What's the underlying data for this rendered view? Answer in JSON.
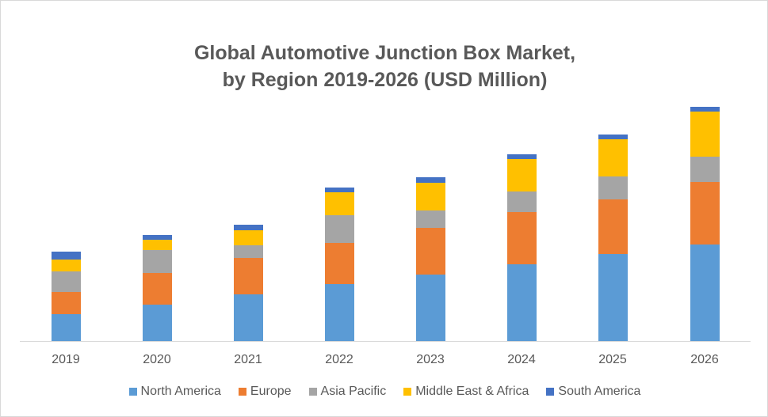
{
  "chart_data": {
    "type": "bar",
    "stacked": true,
    "title": "Global Automotive Junction Box Market, by Region 2019-2026 (USD Million)",
    "title_lines": [
      "Global Automotive Junction Box Market,",
      "by Region 2019-2026 (USD Million)"
    ],
    "xlabel": "",
    "ylabel": "",
    "y_axis_visible": false,
    "grid": false,
    "legend_position": "bottom",
    "categories": [
      "2019",
      "2020",
      "2021",
      "2022",
      "2023",
      "2024",
      "2025",
      "2026"
    ],
    "series": [
      {
        "name": "North America",
        "color": "#5B9BD5",
        "values": [
          350,
          470,
          600,
          730,
          850,
          980,
          1110,
          1230
        ]
      },
      {
        "name": "Europe",
        "color": "#ED7D31",
        "values": [
          280,
          400,
          460,
          520,
          590,
          660,
          690,
          790
        ]
      },
      {
        "name": "Asia Pacific",
        "color": "#A5A5A5",
        "values": [
          260,
          290,
          160,
          350,
          220,
          260,
          290,
          320
        ]
      },
      {
        "name": "Middle East & Africa",
        "color": "#FFC000",
        "values": [
          150,
          130,
          190,
          290,
          350,
          410,
          470,
          570
        ]
      },
      {
        "name": "South America",
        "color": "#4472C4",
        "values": [
          100,
          60,
          70,
          60,
          70,
          60,
          60,
          60
        ]
      }
    ],
    "ylim": [
      0,
      3110
    ],
    "note": "No y-axis shown; values are estimated from relative bar heights."
  }
}
